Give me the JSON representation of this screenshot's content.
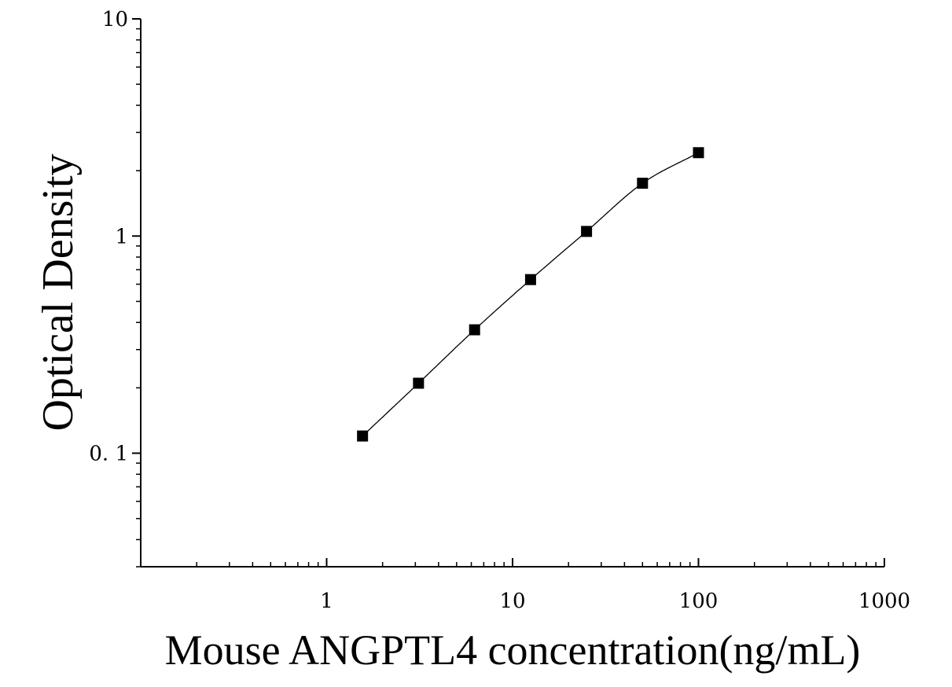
{
  "chart_data": {
    "type": "scatter",
    "title": "",
    "xlabel": "Mouse ANGPTL4 concentration(ng/mL)",
    "ylabel": "Optical Density",
    "x_scale": "log",
    "y_scale": "log",
    "xlim": [
      0.1,
      1000
    ],
    "ylim": [
      0.03,
      10
    ],
    "x_ticks": [
      {
        "value": 1,
        "label": "1"
      },
      {
        "value": 10,
        "label": "10"
      },
      {
        "value": 100,
        "label": "100"
      },
      {
        "value": 1000,
        "label": "1000"
      }
    ],
    "y_ticks": [
      {
        "value": 0.1,
        "label": "0. 1"
      },
      {
        "value": 1,
        "label": "1"
      },
      {
        "value": 10,
        "label": "10"
      }
    ],
    "grid": false,
    "legend": "none",
    "series": [
      {
        "marker": "square",
        "color": "#000000",
        "x": [
          1.56,
          3.12,
          6.25,
          12.5,
          25,
          50,
          100
        ],
        "y": [
          0.12,
          0.21,
          0.37,
          0.63,
          1.05,
          1.75,
          2.42
        ]
      }
    ],
    "fit_curve": {
      "type": "four-parameter-logistic",
      "color": "#000000",
      "x_range": [
        1.56,
        100
      ]
    }
  }
}
